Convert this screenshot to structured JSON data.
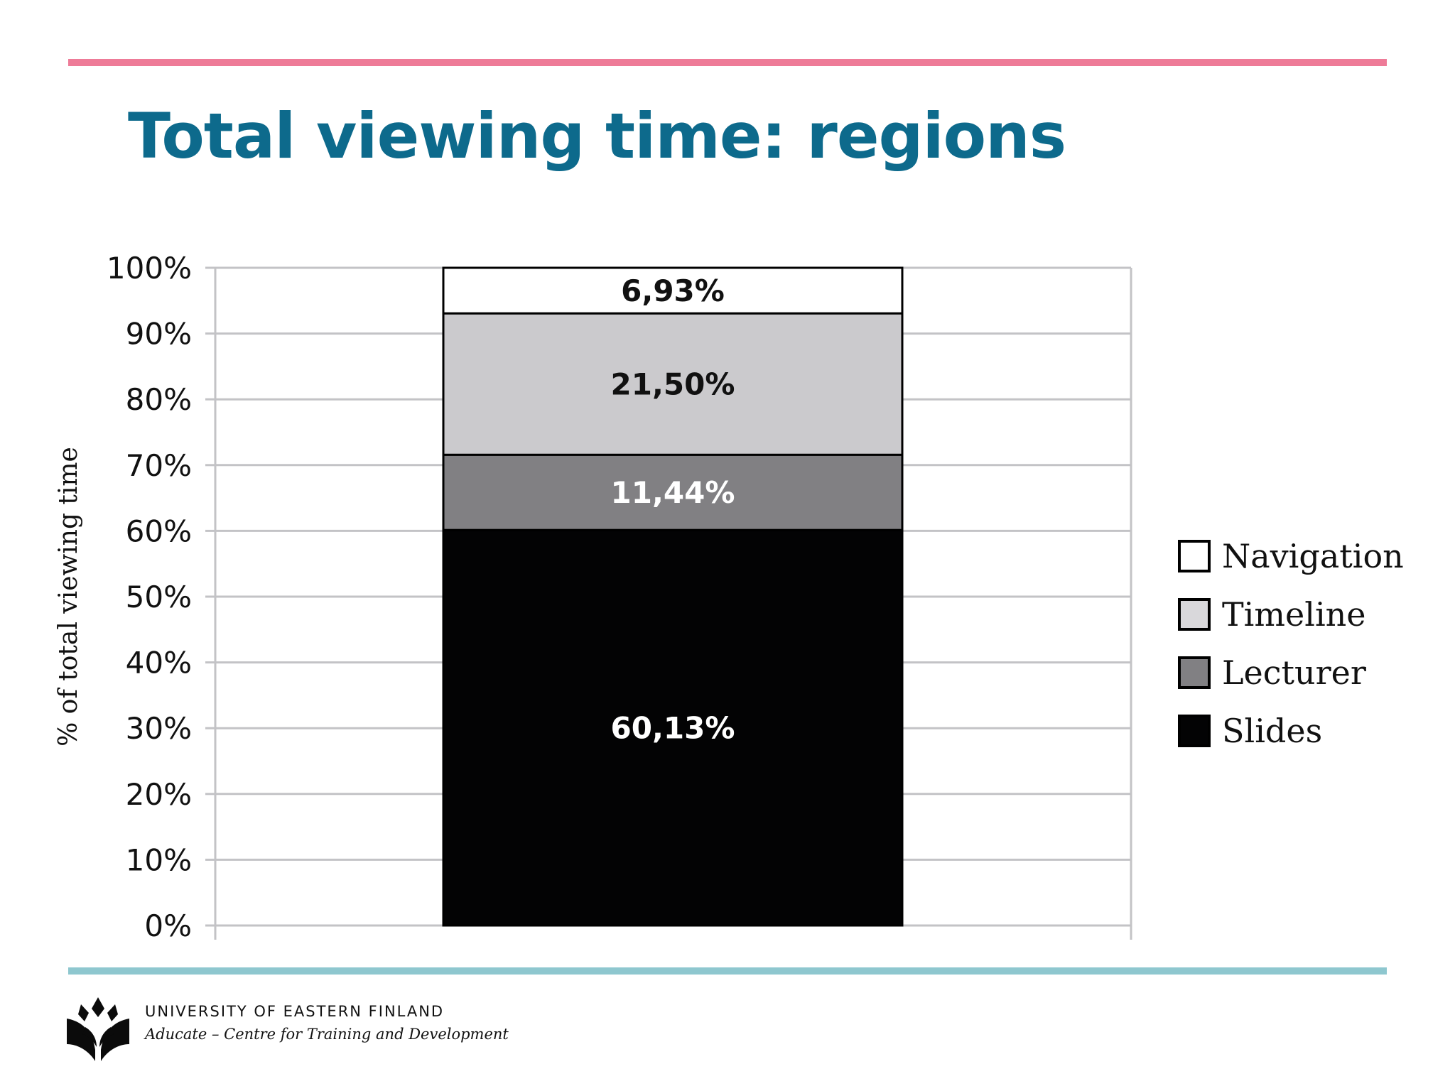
{
  "slide": {
    "title": "Total viewing time: regions",
    "title_color": "#0d6a8c",
    "top_rule_color": "#ee7b98",
    "bottom_rule_color": "#8ec7cf"
  },
  "chart_data": {
    "type": "bar",
    "stacked": true,
    "title": "",
    "xlabel": "",
    "ylabel": "% of total viewing time",
    "ylim": [
      0,
      100
    ],
    "yticks": [
      "0%",
      "10%",
      "20%",
      "30%",
      "40%",
      "50%",
      "60%",
      "70%",
      "80%",
      "90%",
      "100%"
    ],
    "grid": true,
    "legend_position": "right",
    "series": [
      {
        "name": "Slides",
        "values": [
          60.13
        ],
        "label": "60,13%",
        "color": "#030304",
        "label_color": "#ffffff"
      },
      {
        "name": "Lecturer",
        "values": [
          11.44
        ],
        "label": "11,44%",
        "color": "#818083",
        "label_color": "#ffffff"
      },
      {
        "name": "Timeline",
        "values": [
          21.5
        ],
        "label": "21,50%",
        "color": "#cbcacd",
        "label_color": "#111111"
      },
      {
        "name": "Navigation",
        "values": [
          6.93
        ],
        "label": "6,93%",
        "color": "#ffffff",
        "label_color": "#111111"
      }
    ]
  },
  "legend": {
    "items": [
      {
        "label": "Navigation",
        "color": "#ffffff"
      },
      {
        "label": "Timeline",
        "color": "#d9d8db"
      },
      {
        "label": "Lecturer",
        "color": "#818083"
      },
      {
        "label": "Slides",
        "color": "#030304"
      }
    ]
  },
  "footer": {
    "university": "UNIVERSITY OF EASTERN FINLAND",
    "unit": "Aducate – Centre for Training and Development"
  }
}
